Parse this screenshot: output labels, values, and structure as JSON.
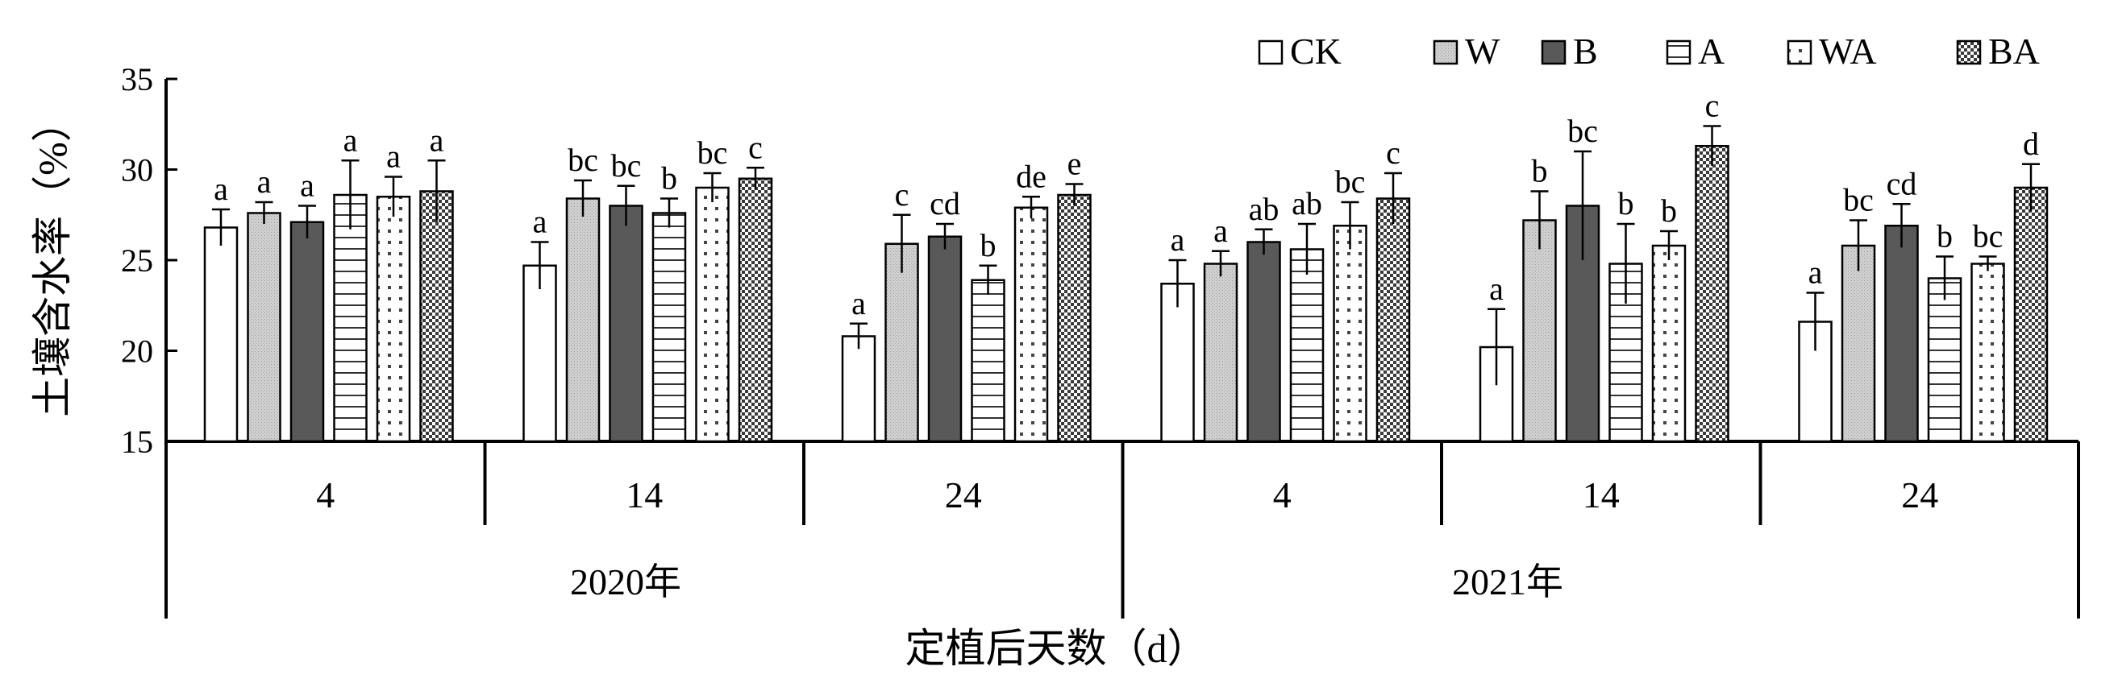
{
  "chart_data": {
    "type": "bar",
    "ylabel": "土壤含水率（%）",
    "xlabel": "定植后天数（d）",
    "ylim": [
      15,
      35
    ],
    "yticks": [
      15,
      20,
      25,
      30,
      35
    ],
    "years": [
      "2020年",
      "2021年"
    ],
    "groups": [
      "4",
      "14",
      "24",
      "4",
      "14",
      "24"
    ],
    "legend_position": "top-right",
    "series": [
      {
        "name": "CK",
        "pattern": "white",
        "values": [
          26.8,
          24.7,
          20.8,
          23.7,
          20.2,
          21.6
        ],
        "errors": [
          1.0,
          1.3,
          0.7,
          1.3,
          2.1,
          1.6
        ],
        "labels": [
          "a",
          "a",
          "a",
          "a",
          "a",
          "a"
        ]
      },
      {
        "name": "W",
        "pattern": "lightgray",
        "values": [
          27.6,
          28.4,
          25.9,
          24.8,
          27.2,
          25.8
        ],
        "errors": [
          0.6,
          1.0,
          1.6,
          0.7,
          1.6,
          1.4
        ],
        "labels": [
          "a",
          "bc",
          "c",
          "a",
          "b",
          "bc"
        ]
      },
      {
        "name": "B",
        "pattern": "darkgray",
        "values": [
          27.1,
          28.0,
          26.3,
          26.0,
          28.0,
          26.9
        ],
        "errors": [
          0.9,
          1.1,
          0.7,
          0.7,
          3.0,
          1.2
        ],
        "labels": [
          "a",
          "bc",
          "cd",
          "ab",
          "bc",
          "cd"
        ]
      },
      {
        "name": "A",
        "pattern": "hlines",
        "values": [
          28.6,
          27.6,
          23.9,
          25.6,
          24.8,
          24.0
        ],
        "errors": [
          1.9,
          0.8,
          0.8,
          1.4,
          2.2,
          1.2
        ],
        "labels": [
          "a",
          "b",
          "b",
          "ab",
          "b",
          "b"
        ]
      },
      {
        "name": "WA",
        "pattern": "dots",
        "values": [
          28.5,
          29.0,
          27.9,
          26.9,
          25.8,
          24.8
        ],
        "errors": [
          1.1,
          0.8,
          0.6,
          1.3,
          0.8,
          0.4
        ],
        "labels": [
          "a",
          "bc",
          "de",
          "bc",
          "b",
          "bc"
        ]
      },
      {
        "name": "BA",
        "pattern": "checker",
        "values": [
          28.8,
          29.5,
          28.6,
          28.4,
          31.3,
          29.0
        ],
        "errors": [
          1.7,
          0.6,
          0.6,
          1.4,
          1.1,
          1.3
        ],
        "labels": [
          "a",
          "c",
          "e",
          "c",
          "c",
          "d"
        ]
      }
    ]
  }
}
